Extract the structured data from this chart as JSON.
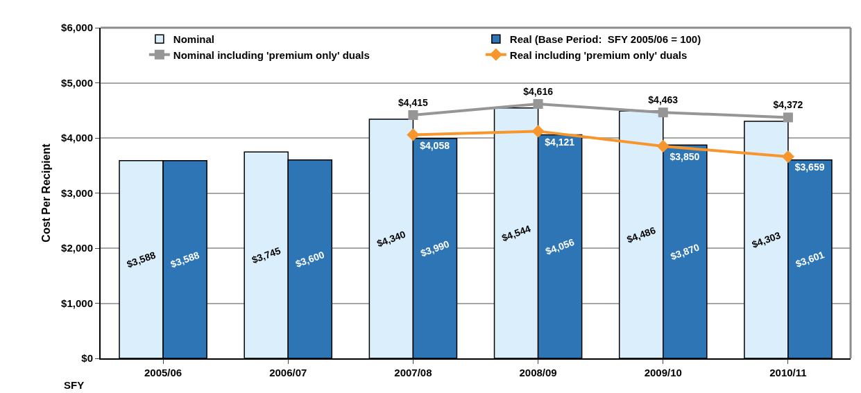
{
  "chart_data": {
    "type": "bar",
    "xlabel": "SFY",
    "ylabel": "Cost Per Recipient",
    "categories": [
      "2005/06",
      "2006/07",
      "2007/08",
      "2008/09",
      "2009/10",
      "2010/11"
    ],
    "series": [
      {
        "name": "Nominal",
        "color": "#dbeefb",
        "values": [
          3588,
          3745,
          4340,
          4544,
          4486,
          4303
        ],
        "value_labels": [
          "$3,588",
          "$3,745",
          "$4,340",
          "$4,544",
          "$4,486",
          "$4,303"
        ]
      },
      {
        "name": "Real (Base Period:  SFY 2005/06 = 100)",
        "color": "#2e75b6",
        "values": [
          3588,
          3600,
          3990,
          4056,
          3870,
          3601
        ],
        "value_labels": [
          "$3,588",
          "$3,600",
          "$3,990",
          "$4,056",
          "$3,870",
          "$3,601"
        ]
      },
      {
        "name": "Nominal including 'premium only' duals",
        "type": "line",
        "color": "#969696",
        "marker": "square",
        "values": [
          null,
          null,
          4415,
          4616,
          4463,
          4372
        ],
        "value_labels": [
          null,
          null,
          "$4,415",
          "$4,616",
          "$4,463",
          "$4,372"
        ]
      },
      {
        "name": "Real including 'premium only' duals",
        "type": "line",
        "color": "#f7962d",
        "marker": "diamond",
        "values": [
          null,
          null,
          4058,
          4121,
          3850,
          3659
        ],
        "value_labels": [
          null,
          null,
          "$4,058",
          "$4,121",
          "$3,850",
          "$3,659"
        ]
      }
    ],
    "ylim": [
      0,
      6000
    ],
    "yticks": [
      {
        "value": 0,
        "label": "$0"
      },
      {
        "value": 1000,
        "label": "$1,000"
      },
      {
        "value": 2000,
        "label": "$2,000"
      },
      {
        "value": 3000,
        "label": "$3,000"
      },
      {
        "value": 4000,
        "label": "$4,000"
      },
      {
        "value": 5000,
        "label": "$5,000"
      },
      {
        "value": 6000,
        "label": "$6,000"
      }
    ],
    "grid": "y",
    "legend": "top",
    "line_style": "solid"
  }
}
